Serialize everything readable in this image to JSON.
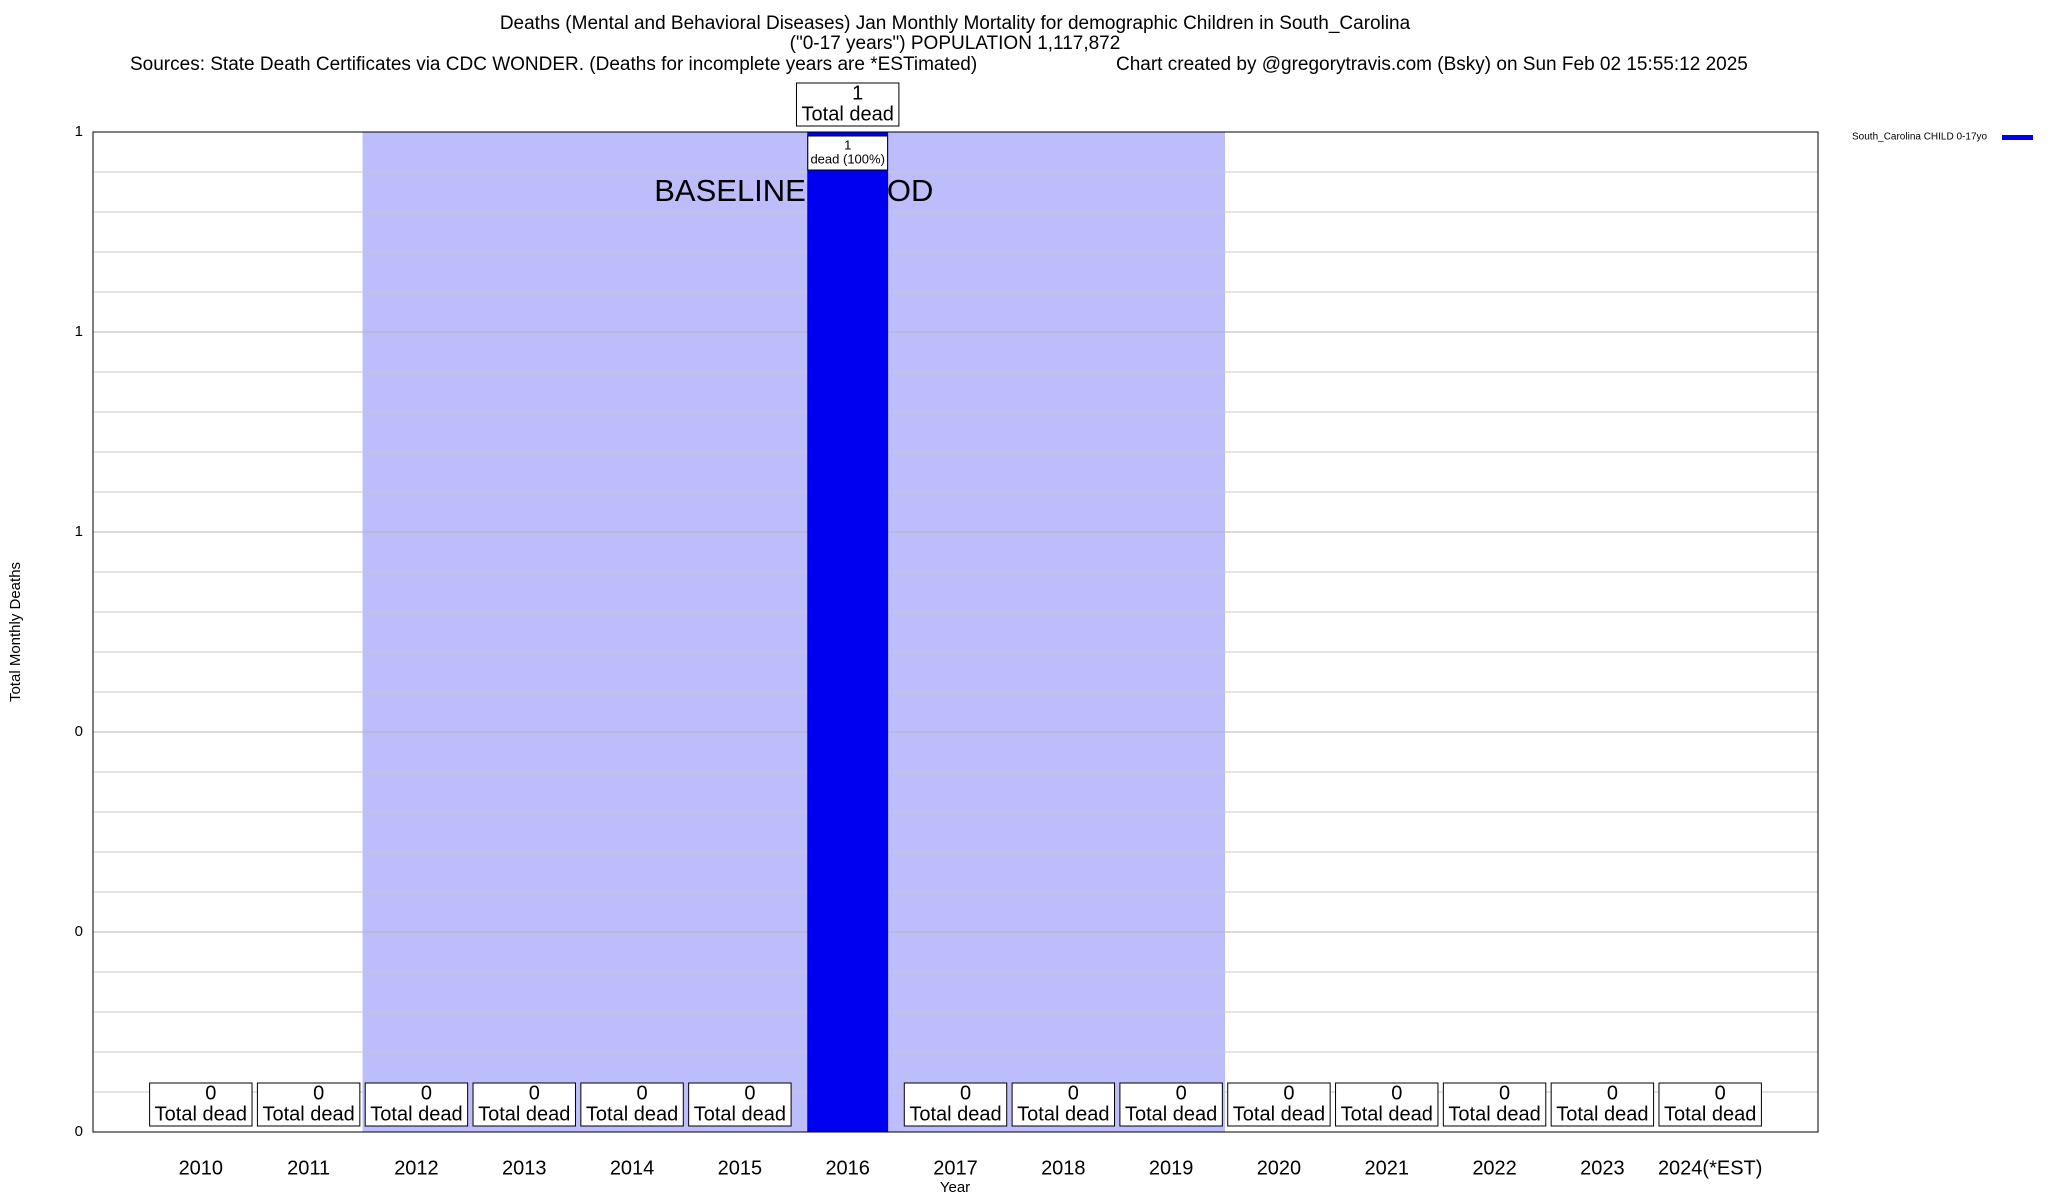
{
  "chart_data": {
    "type": "bar",
    "title": "Deaths (Mental and Behavioral Diseases) Jan Monthly Mortality for demographic Children in South_Carolina",
    "subtitle": "(\"0-17 years\") POPULATION 1,117,872",
    "source": "Sources: State Death Certificates via CDC WONDER. (Deaths for incomplete years are *ESTimated)",
    "credit": "Chart created by @gregorytravis.com (Bsky) on Sun Feb 02 15:55:12 2025",
    "x_label": "Year",
    "y_label": "Total Monthly Deaths",
    "categories": [
      "2010",
      "2011",
      "2012",
      "2013",
      "2014",
      "2015",
      "2016",
      "2017",
      "2018",
      "2019",
      "2020",
      "2021",
      "2022",
      "2023",
      "2024(*EST)"
    ],
    "series": [
      {
        "name": "South_Carolina CHILD 0-17yo",
        "color": "#0000f0",
        "values": [
          0,
          0,
          0,
          0,
          0,
          0,
          1,
          0,
          0,
          0,
          0,
          0,
          0,
          0,
          0
        ]
      }
    ],
    "data_label_text": "Total dead",
    "inner_labels": [
      null,
      null,
      null,
      null,
      null,
      null,
      "dead (100%)",
      null,
      null,
      null,
      null,
      null,
      null,
      null,
      null
    ],
    "baseline_period": {
      "label": "BASELINE PERIOD",
      "start": "2012",
      "end": "2019",
      "color": "#bdbdfb"
    },
    "ylim": [
      0,
      1
    ],
    "yticks": [
      0,
      {
        "value": 0.2,
        "label": "0"
      },
      {
        "value": 0.4,
        "label": "0"
      },
      {
        "value": 0.6,
        "label": "1"
      },
      {
        "value": 0.8,
        "label": "1"
      },
      1
    ],
    "minor_yticks": [
      0.04,
      0.08,
      0.12,
      0.16,
      0.24,
      0.28,
      0.32,
      0.36,
      0.44,
      0.48,
      0.52,
      0.56,
      0.64,
      0.68,
      0.72,
      0.76,
      0.84,
      0.88,
      0.92,
      0.96
    ],
    "grid": true,
    "legend": "top-right"
  }
}
